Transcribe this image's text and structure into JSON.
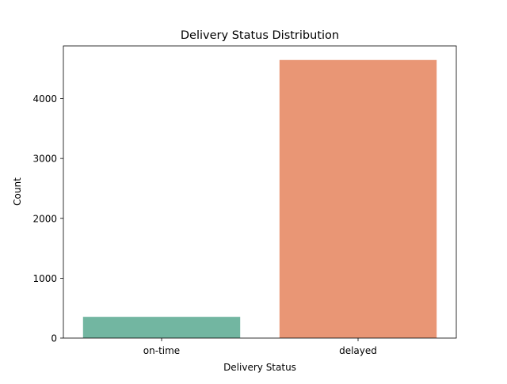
{
  "chart_data": {
    "type": "bar",
    "title": "Delivery Status Distribution",
    "xlabel": "Delivery Status",
    "ylabel": "Count",
    "categories": [
      "on-time",
      "delayed"
    ],
    "values": [
      355,
      4645
    ],
    "colors": [
      "#72b6a1",
      "#e99675"
    ],
    "ylim": [
      0,
      4880
    ],
    "yticks": [
      0,
      1000,
      2000,
      3000,
      4000
    ],
    "ytick_labels": [
      "0",
      "1000",
      "2000",
      "3000",
      "4000"
    ],
    "grid": false,
    "legend": "none"
  }
}
